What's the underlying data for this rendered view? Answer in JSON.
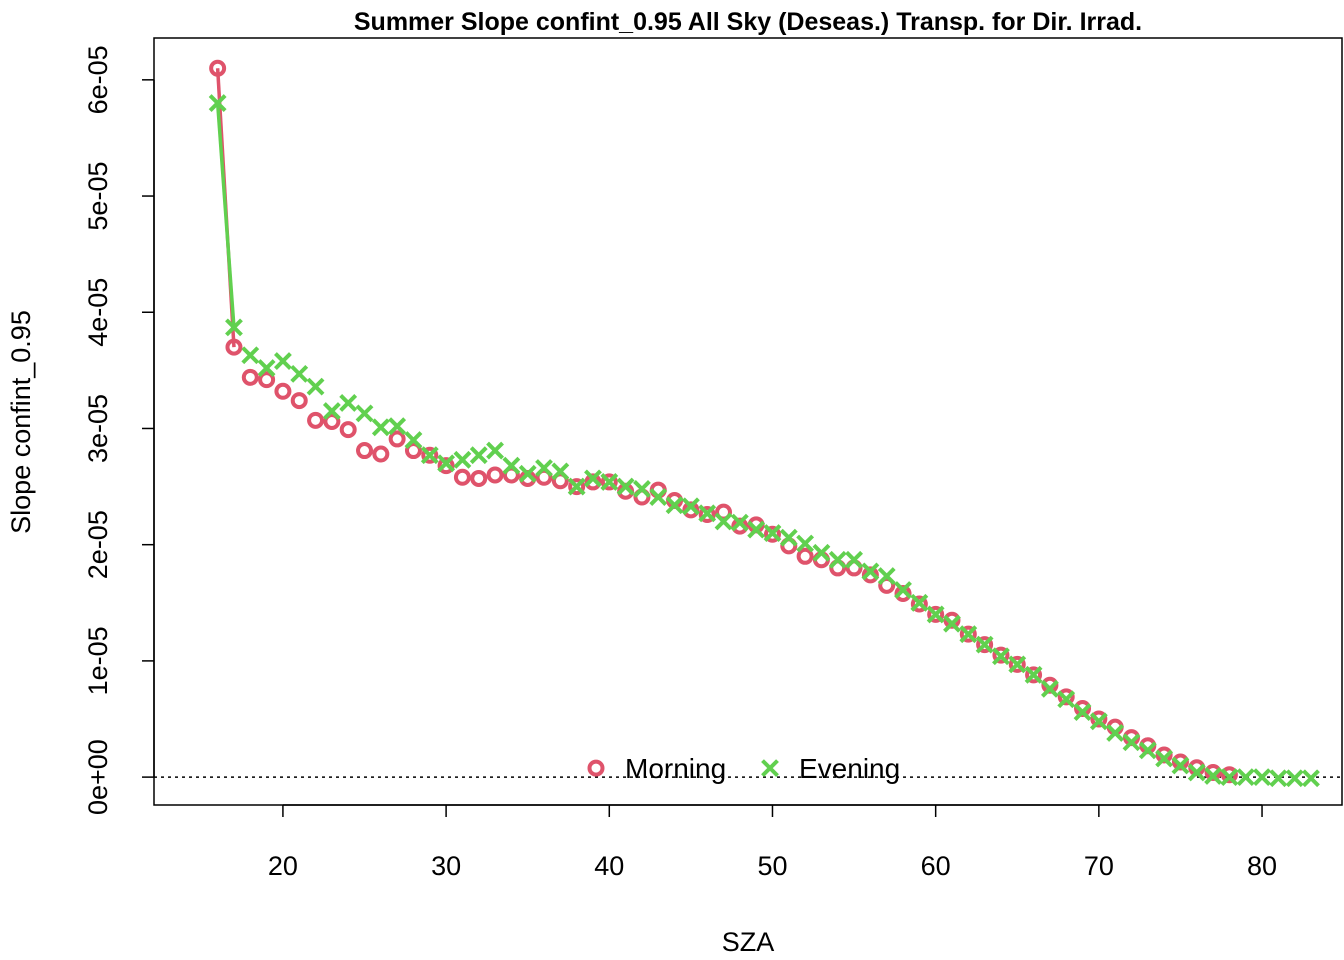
{
  "colors": {
    "morning": "#df536b",
    "evening": "#61d04f",
    "axis": "#000000",
    "background": "#ffffff"
  },
  "chart_data": {
    "type": "scatter",
    "title": "Summer Slope confint_0.95 All Sky (Deseas.) Transp. for Dir. Irrad.",
    "xlabel": "SZA",
    "ylabel": "Slope confint_0.95",
    "xlim": [
      12.1,
      84.9
    ],
    "ylim": [
      -2.4e-06,
      6.36e-05
    ],
    "xticks": [
      20,
      30,
      40,
      50,
      60,
      70,
      80
    ],
    "xtick_labels": [
      "20",
      "30",
      "40",
      "50",
      "60",
      "70",
      "80"
    ],
    "yticks": [
      0,
      1e-05,
      2e-05,
      3e-05,
      4e-05,
      5e-05,
      6e-05
    ],
    "ytick_labels": [
      "0e+00",
      "1e-05",
      "2e-05",
      "3e-05",
      "4e-05",
      "5e-05",
      "6e-05"
    ],
    "reference_line": {
      "y": 0,
      "style": "dotted"
    },
    "grid": false,
    "legend": {
      "placement": "bottom-center",
      "horizontal": true
    },
    "series": [
      {
        "name": "Morning",
        "marker": "circle",
        "x": [
          16,
          17,
          18,
          19,
          20,
          21,
          22,
          23,
          24,
          25,
          26,
          27,
          28,
          29,
          30,
          31,
          32,
          33,
          34,
          35,
          36,
          37,
          38,
          39,
          40,
          41,
          42,
          43,
          44,
          45,
          46,
          47,
          48,
          49,
          50,
          51,
          52,
          53,
          54,
          55,
          56,
          57,
          58,
          59,
          60,
          61,
          62,
          63,
          64,
          65,
          66,
          67,
          68,
          69,
          70,
          71,
          72,
          73,
          74,
          75,
          76,
          77,
          78
        ],
        "y": [
          6.1e-05,
          3.7e-05,
          3.44e-05,
          3.42e-05,
          3.32e-05,
          3.24e-05,
          3.07e-05,
          3.06e-05,
          2.99e-05,
          2.81e-05,
          2.78e-05,
          2.91e-05,
          2.81e-05,
          2.77e-05,
          2.68e-05,
          2.58e-05,
          2.57e-05,
          2.6e-05,
          2.6e-05,
          2.57e-05,
          2.58e-05,
          2.55e-05,
          2.5e-05,
          2.54e-05,
          2.54e-05,
          2.46e-05,
          2.41e-05,
          2.47e-05,
          2.38e-05,
          2.3e-05,
          2.26e-05,
          2.28e-05,
          2.16e-05,
          2.17e-05,
          2.09e-05,
          1.99e-05,
          1.9e-05,
          1.87e-05,
          1.8e-05,
          1.8e-05,
          1.74e-05,
          1.65e-05,
          1.58e-05,
          1.49e-05,
          1.4e-05,
          1.35e-05,
          1.23e-05,
          1.14e-05,
          1.05e-05,
          9.7e-06,
          8.8e-06,
          7.9e-06,
          6.9e-06,
          5.9e-06,
          5e-06,
          4.3e-06,
          3.4e-06,
          2.7e-06,
          1.9e-06,
          1.3e-06,
          8e-07,
          4e-07,
          2e-07
        ]
      },
      {
        "name": "Evening",
        "marker": "cross",
        "x": [
          16,
          17,
          18,
          19,
          20,
          21,
          22,
          23,
          24,
          25,
          26,
          27,
          28,
          29,
          30,
          31,
          32,
          33,
          34,
          35,
          36,
          37,
          38,
          39,
          40,
          41,
          42,
          43,
          44,
          45,
          46,
          47,
          48,
          49,
          50,
          51,
          52,
          53,
          54,
          55,
          56,
          57,
          58,
          59,
          60,
          61,
          62,
          63,
          64,
          65,
          66,
          67,
          68,
          69,
          70,
          71,
          72,
          73,
          74,
          75,
          76,
          77,
          78,
          79,
          80,
          81,
          82,
          83
        ],
        "y": [
          5.8e-05,
          3.87e-05,
          3.63e-05,
          3.52e-05,
          3.58e-05,
          3.47e-05,
          3.36e-05,
          3.15e-05,
          3.22e-05,
          3.13e-05,
          3.01e-05,
          3.02e-05,
          2.9e-05,
          2.77e-05,
          2.7e-05,
          2.73e-05,
          2.77e-05,
          2.81e-05,
          2.68e-05,
          2.61e-05,
          2.66e-05,
          2.63e-05,
          2.5e-05,
          2.57e-05,
          2.54e-05,
          2.5e-05,
          2.48e-05,
          2.41e-05,
          2.34e-05,
          2.33e-05,
          2.27e-05,
          2.2e-05,
          2.19e-05,
          2.13e-05,
          2.1e-05,
          2.06e-05,
          2.01e-05,
          1.93e-05,
          1.87e-05,
          1.87e-05,
          1.77e-05,
          1.73e-05,
          1.61e-05,
          1.5e-05,
          1.4e-05,
          1.32e-05,
          1.23e-05,
          1.14e-05,
          1.04e-05,
          9.7e-06,
          8.8e-06,
          7.6e-06,
          6.7e-06,
          5.6e-06,
          4.8e-06,
          3.8e-06,
          3e-06,
          2.3e-06,
          1.6e-06,
          1e-06,
          4e-07,
          1e-07,
          0,
          0,
          0,
          -1e-07,
          -1e-07,
          -1e-07
        ]
      }
    ]
  }
}
